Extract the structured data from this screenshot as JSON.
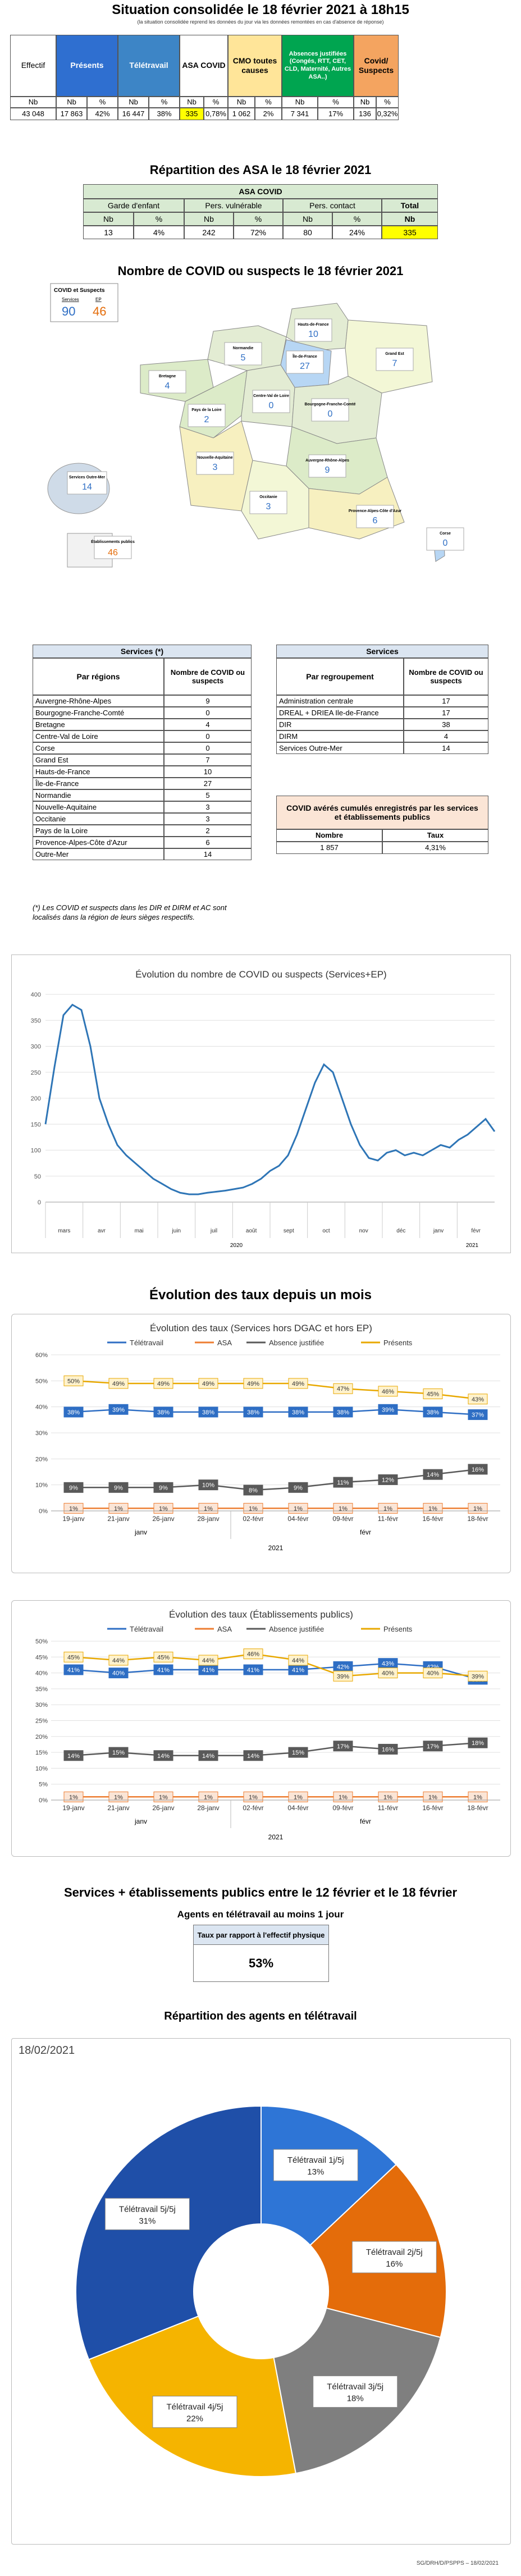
{
  "header": {
    "title": "Situation consolidée le 18 février 2021 à 18h15",
    "subtitle": "(la situation consolidée reprend les données du jour via les données remontées en cas d'absence de réponse)"
  },
  "summary": {
    "columns": [
      {
        "label": "Effectif",
        "bg": "#ffffff",
        "fg": "#000000"
      },
      {
        "label": "Présents",
        "bg": "#2f6fd0",
        "fg": "#ffffff"
      },
      {
        "label": "Télétravail",
        "bg": "#3d85c6",
        "fg": "#ffffff"
      },
      {
        "label": "ASA COVID",
        "bg": "#ffffff",
        "fg": "#000000"
      },
      {
        "label": "CMO toutes causes",
        "bg": "#ffe599",
        "fg": "#000000"
      },
      {
        "label": "Absences justifiées (Congés, RTT, CET, CLD, Maternité, Autres ASA..)",
        "bg": "#00a550",
        "fg": "#ffffff"
      },
      {
        "label": "Covid/ Suspects",
        "bg": "#f4a460",
        "fg": "#000000"
      }
    ],
    "sub_headers": [
      "Nb",
      "Nb",
      "%",
      "Nb",
      "%",
      "Nb",
      "%",
      "Nb",
      "%",
      "Nb",
      "%",
      "Nb",
      "%"
    ],
    "values": [
      "43 048",
      "17 863",
      "42%",
      "16 447",
      "38%",
      "335",
      "0,78%",
      "1 062",
      "2%",
      "7 341",
      "17%",
      "136",
      "0,32%"
    ]
  },
  "asa": {
    "title": "Répartition des ASA le 18 février 2021",
    "table_title": "ASA COVID",
    "groups": [
      "Garde d'enfant",
      "Pers. vulnérable",
      "Pers. contact",
      "Total"
    ],
    "sub_headers": [
      "Nb",
      "%",
      "Nb",
      "%",
      "Nb",
      "%",
      "Nb"
    ],
    "values": [
      "13",
      "4%",
      "242",
      "72%",
      "80",
      "24%",
      "335"
    ]
  },
  "map": {
    "title": "Nombre de COVID ou suspects le 18 février 2021",
    "legend_title": "COVID et Suspects",
    "legend_services_label": "Services",
    "legend_ep_label": "EP",
    "legend_services_value": "90",
    "legend_ep_value": "46",
    "regions": [
      {
        "name": "Hauts-de-France",
        "value": "10"
      },
      {
        "name": "Normandie",
        "value": "5"
      },
      {
        "name": "Île-de-France",
        "value": "27"
      },
      {
        "name": "Grand Est",
        "value": "7"
      },
      {
        "name": "Bretagne",
        "value": "4"
      },
      {
        "name": "Pays de la Loire",
        "value": "2"
      },
      {
        "name": "Centre-Val de Loire",
        "value": "0"
      },
      {
        "name": "Bourgogne-Franche-Comté",
        "value": "0"
      },
      {
        "name": "Nouvelle-Aquitaine",
        "value": "3"
      },
      {
        "name": "Auvergne-Rhône-Alpes",
        "value": "9"
      },
      {
        "name": "Occitanie",
        "value": "3"
      },
      {
        "name": "Provence-Alpes-Côte d'Azur",
        "value": "6"
      },
      {
        "name": "Corse",
        "value": "0"
      },
      {
        "name": "Services Outre-Mer",
        "value": "14"
      },
      {
        "name": "Établissements publics",
        "value": "46"
      }
    ]
  },
  "services_regions": {
    "title": "Services (*)",
    "col1": "Par régions",
    "col2": "Nombre de COVID ou suspects",
    "rows": [
      [
        "Auvergne-Rhône-Alpes",
        "9"
      ],
      [
        "Bourgogne-Franche-Comté",
        "0"
      ],
      [
        "Bretagne",
        "4"
      ],
      [
        "Centre-Val de Loire",
        "0"
      ],
      [
        "Corse",
        "0"
      ],
      [
        "Grand Est",
        "7"
      ],
      [
        "Hauts-de-France",
        "10"
      ],
      [
        "Île-de-France",
        "27"
      ],
      [
        "Normandie",
        "5"
      ],
      [
        "Nouvelle-Aquitaine",
        "3"
      ],
      [
        "Occitanie",
        "3"
      ],
      [
        "Pays de la Loire",
        "2"
      ],
      [
        "Provence-Alpes-Côte d'Azur",
        "6"
      ],
      [
        "Outre-Mer",
        "14"
      ]
    ],
    "footnote": "(*) Les COVID et suspects dans les DIR et DIRM et AC sont localisés dans la région de leurs sièges respectifs."
  },
  "services_groups": {
    "title": "Services",
    "col1": "Par regroupement",
    "col2": "Nombre de COVID ou suspects",
    "rows": [
      [
        "Administration centrale",
        "17"
      ],
      [
        "DREAL + DRIEA Ile-de-France",
        "17"
      ],
      [
        "DIR",
        "38"
      ],
      [
        "DIRM",
        "4"
      ],
      [
        "Services Outre-Mer",
        "14"
      ]
    ]
  },
  "cumul": {
    "title": "COVID avérés cumulés enregistrés par les services et établissements publics",
    "col1": "Nombre",
    "col2": "Taux",
    "v1": "1 857",
    "v2": "4,31%"
  },
  "chart1": {
    "chart_data": {
      "type": "line",
      "title": "Évolution du nombre de COVID ou suspects (Services+EP)",
      "ylim": [
        0,
        400
      ],
      "yticks": [
        "0",
        "50",
        "100",
        "150",
        "200",
        "250",
        "300",
        "350",
        "400"
      ],
      "months": [
        "mars",
        "avr",
        "mai",
        "juin",
        "juil",
        "août",
        "sept",
        "oct",
        "nov",
        "déc",
        "janv",
        "févr"
      ],
      "years": [
        "2020",
        "2021"
      ],
      "series": [
        {
          "values": [
            150,
            260,
            360,
            380,
            370,
            300,
            200,
            150,
            110,
            90,
            75,
            60,
            45,
            35,
            25,
            18,
            15,
            15,
            18,
            20,
            22,
            25,
            28,
            35,
            45,
            60,
            70,
            90,
            130,
            180,
            230,
            265,
            250,
            200,
            150,
            110,
            85,
            80,
            95,
            100,
            90,
            95,
            90,
            100,
            110,
            105,
            120,
            130,
            145,
            160,
            136
          ]
        }
      ],
      "color": "#2e75b6"
    }
  },
  "section_taux": "Évolution des taux depuis un mois",
  "chart2": {
    "chart_data": {
      "type": "line",
      "title": "Évolution des taux (Services hors DGAC et hors EP)",
      "categories": [
        "19-janv",
        "21-janv",
        "26-janv",
        "28-janv",
        "02-févr",
        "04-févr",
        "09-févr",
        "11-févr",
        "16-févr",
        "18-févr"
      ],
      "month_labels": [
        "janv",
        "févr"
      ],
      "year": "2021",
      "ylim": [
        0,
        60
      ],
      "yticks": [
        "0%",
        "10%",
        "20%",
        "30%",
        "40%",
        "50%",
        "60%"
      ],
      "series": [
        {
          "name": "Télétravail",
          "color": "#2e6ec4",
          "values": [
            38,
            39,
            38,
            38,
            38,
            38,
            38,
            39,
            38,
            37
          ],
          "labels": [
            "38%",
            "39%",
            "38%",
            "38%",
            "38%",
            "38%",
            "38%",
            "39%",
            "38%",
            "37%"
          ]
        },
        {
          "name": "ASA",
          "color": "#ed7d31",
          "values": [
            1,
            1,
            1,
            1,
            1,
            1,
            1,
            1,
            1,
            1
          ],
          "labels": [
            "1%",
            "1%",
            "1%",
            "1%",
            "1%",
            "1%",
            "1%",
            "1%",
            "1%",
            "1%"
          ]
        },
        {
          "name": "Absence justifiée",
          "color": "#595959",
          "values": [
            9,
            9,
            9,
            10,
            8,
            9,
            11,
            12,
            14,
            16
          ],
          "labels": [
            "9%",
            "9%",
            "9%",
            "10%",
            "8%",
            "9%",
            "11%",
            "12%",
            "14%",
            "16%"
          ]
        },
        {
          "name": "Présents",
          "color": "#e8a800",
          "values": [
            50,
            49,
            49,
            49,
            49,
            49,
            47,
            46,
            45,
            43
          ],
          "labels": [
            "50%",
            "49%",
            "49%",
            "49%",
            "49%",
            "49%",
            "47%",
            "46%",
            "45%",
            "43%"
          ]
        }
      ]
    }
  },
  "chart3": {
    "chart_data": {
      "type": "line",
      "title": "Évolution des taux (Établissements publics)",
      "categories": [
        "19-janv",
        "21-janv",
        "26-janv",
        "28-janv",
        "02-févr",
        "04-févr",
        "09-févr",
        "11-févr",
        "16-févr",
        "18-févr"
      ],
      "month_labels": [
        "janv",
        "févr"
      ],
      "year": "2021",
      "ylim": [
        0,
        50
      ],
      "yticks": [
        "0%",
        "5%",
        "10%",
        "15%",
        "20%",
        "25%",
        "30%",
        "35%",
        "40%",
        "45%",
        "50%"
      ],
      "series": [
        {
          "name": "Télétravail",
          "color": "#2e6ec4",
          "values": [
            41,
            40,
            41,
            41,
            41,
            41,
            42,
            43,
            42,
            38
          ],
          "labels": [
            "41%",
            "40%",
            "41%",
            "41%",
            "41%",
            "41%",
            "42%",
            "43%",
            "42%",
            "38%"
          ]
        },
        {
          "name": "ASA",
          "color": "#ed7d31",
          "values": [
            1,
            1,
            1,
            1,
            1,
            1,
            1,
            1,
            1,
            1
          ],
          "labels": [
            "1%",
            "1%",
            "1%",
            "1%",
            "1%",
            "1%",
            "1%",
            "1%",
            "1%",
            "1%"
          ]
        },
        {
          "name": "Absence justifiée",
          "color": "#595959",
          "values": [
            14,
            15,
            14,
            14,
            14,
            15,
            17,
            16,
            17,
            18
          ],
          "labels": [
            "14%",
            "15%",
            "14%",
            "14%",
            "14%",
            "15%",
            "17%",
            "16%",
            "17%",
            "18%"
          ]
        },
        {
          "name": "Présents",
          "color": "#e8a800",
          "values": [
            45,
            44,
            45,
            44,
            46,
            44,
            39,
            40,
            40,
            39
          ],
          "labels": [
            "45%",
            "44%",
            "45%",
            "44%",
            "46%",
            "44%",
            "39%",
            "40%",
            "40%",
            "39%"
          ]
        }
      ]
    }
  },
  "period": {
    "title": "Services + établissements publics entre le 12 février et le 18 février",
    "subtitle": "Agents en télétravail au moins 1 jour",
    "label": "Taux par rapport à l'effectif physique",
    "value": "53%"
  },
  "donut": {
    "title": "Répartition des agents en télétravail",
    "date": "18/02/2021",
    "chart_data": {
      "type": "pie",
      "slices": [
        {
          "label": "Télétravail 1j/5j",
          "pct": "13%",
          "value": 13,
          "color": "#2e75d6"
        },
        {
          "label": "Télétravail 2j/5j",
          "pct": "16%",
          "value": 16,
          "color": "#e46c0a"
        },
        {
          "label": "Télétravail 3j/5j",
          "pct": "18%",
          "value": 18,
          "color": "#7f7f7f"
        },
        {
          "label": "Télétravail 4j/5j",
          "pct": "22%",
          "value": 22,
          "color": "#f5b400"
        },
        {
          "label": "Télétravail 5j/5j",
          "pct": "31%",
          "value": 31,
          "color": "#1f4fa8"
        }
      ]
    }
  },
  "footer": "SG/DRH/D/PSPPS – 18/02/2021"
}
